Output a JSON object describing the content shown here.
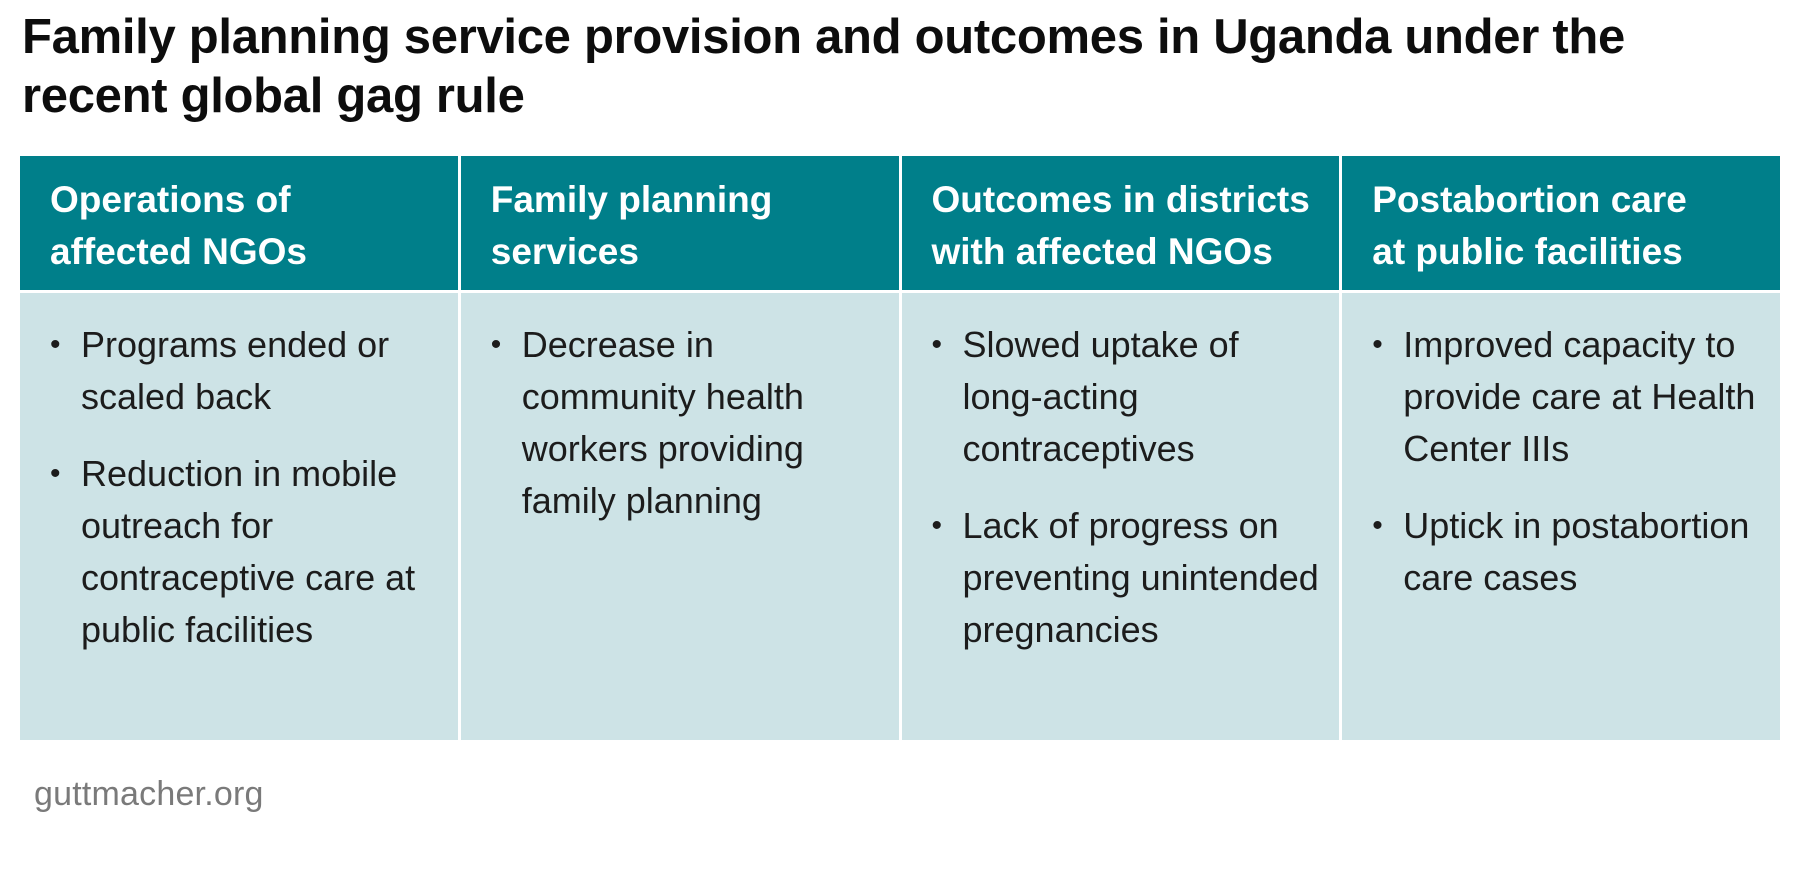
{
  "title": "Family planning service provision and outcomes in Uganda under the recent global gag rule",
  "columns": [
    {
      "header": "Operations of affected NGOs",
      "header_lines": [
        "Operations of",
        "affected NGOs"
      ],
      "bullets": [
        "Programs ended or scaled back",
        "Reduction in mobile outreach for contraceptive care at public facilities"
      ]
    },
    {
      "header": "Family planning services",
      "header_lines": [
        "Family planning",
        "services"
      ],
      "bullets": [
        "Decrease in community health workers providing family planning"
      ]
    },
    {
      "header": "Outcomes in districts with affected NGOs",
      "header_lines": [
        "Outcomes in districts",
        "with affected NGOs"
      ],
      "bullets": [
        "Slowed uptake of long-acting contraceptives",
        "Lack of progress on preventing unintended pregnancies"
      ]
    },
    {
      "header": "Postabortion care at public facilities",
      "header_lines": [
        "Postabortion care",
        "at public facilities"
      ],
      "bullets": [
        "Improved capacity to provide care at Health Center IIIs",
        "Uptick in postabortion care cases"
      ]
    }
  ],
  "bullet_symbol": "•",
  "source": "guttmacher.org",
  "colors": {
    "header_bg": "#007f8a",
    "header_text": "#ffffff",
    "body_bg": "#cde3e6",
    "body_text": "#1c1c1c",
    "source_text": "#7a7a7a"
  }
}
